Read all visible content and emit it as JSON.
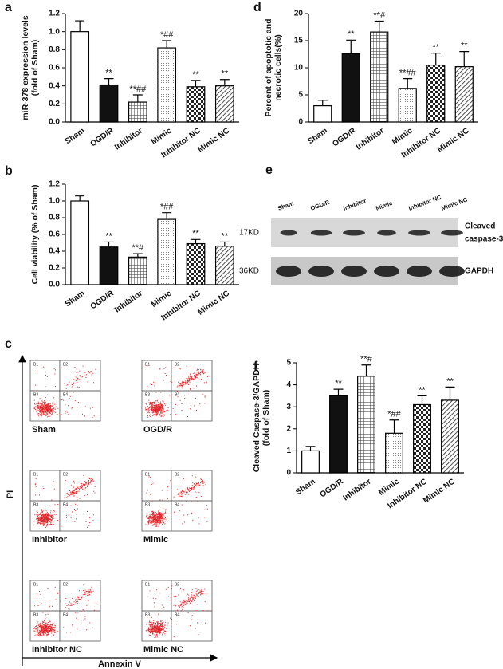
{
  "chart_data": [
    {
      "type": "bar",
      "panel_label": "a",
      "y_label": [
        "miR-378 expression levels",
        "(fold of Sham)"
      ],
      "categories": [
        "Sham",
        "OGD/R",
        "Inhibitor",
        "Mimic",
        "Inhibitor NC",
        "Mimic NC"
      ],
      "values": [
        1.0,
        0.41,
        0.22,
        0.82,
        0.39,
        0.4
      ],
      "errors": [
        0.12,
        0.07,
        0.08,
        0.08,
        0.07,
        0.07
      ],
      "annotations": [
        null,
        "**",
        "**##",
        "*##",
        "**",
        "**"
      ],
      "fills": [
        "white",
        "black",
        "grid",
        "dots",
        "checker",
        "hatch"
      ],
      "ylim": [
        0,
        1.2
      ],
      "yticks": [
        {
          "value": 0,
          "label": "0.0"
        },
        {
          "value": 0.2,
          "label": "0.2"
        },
        {
          "value": 0.4,
          "label": "0.4"
        },
        {
          "value": 0.6,
          "label": "0.6"
        },
        {
          "value": 0.8,
          "label": "0.8"
        },
        {
          "value": 1,
          "label": "1.0"
        },
        {
          "value": 1.2,
          "label": "1.2"
        }
      ]
    },
    {
      "type": "bar",
      "panel_label": "b",
      "y_label": [
        "Cell viability (% of Sham)"
      ],
      "categories": [
        "Sham",
        "OGD/R",
        "Inhibitor",
        "Mimic",
        "Inhibitor NC",
        "Mimic NC"
      ],
      "values": [
        1.0,
        0.45,
        0.33,
        0.78,
        0.49,
        0.46
      ],
      "errors": [
        0.06,
        0.06,
        0.04,
        0.08,
        0.05,
        0.05
      ],
      "annotations": [
        null,
        "**",
        "**#",
        "*##",
        "**",
        "**"
      ],
      "fills": [
        "white",
        "black",
        "grid",
        "dots",
        "checker",
        "hatch"
      ],
      "ylim": [
        0,
        1.2
      ],
      "yticks": [
        {
          "value": 0,
          "label": "0.0"
        },
        {
          "value": 0.2,
          "label": "0.2"
        },
        {
          "value": 0.4,
          "label": "0.4"
        },
        {
          "value": 0.6,
          "label": "0.6"
        },
        {
          "value": 0.8,
          "label": "0.8"
        },
        {
          "value": 1,
          "label": "1.0"
        },
        {
          "value": 1.2,
          "label": "1.2"
        }
      ]
    },
    {
      "type": "bar",
      "panel_label": "d",
      "y_label": [
        "Percent of apoptotic and",
        "necrotic cells(%)"
      ],
      "categories": [
        "Sham",
        "OGD/R",
        "Inhibitor",
        "Mimic",
        "Inhibitor NC",
        "Mimic NC"
      ],
      "values": [
        3,
        12.6,
        16.6,
        6.2,
        10.5,
        10.2
      ],
      "errors": [
        1,
        2.5,
        2,
        1.8,
        2.2,
        2.8
      ],
      "annotations": [
        null,
        "**",
        "**#",
        "**##",
        "**",
        "**"
      ],
      "fills": [
        "white",
        "black",
        "grid",
        "dots",
        "checker",
        "hatch"
      ],
      "ylim": [
        0,
        20
      ],
      "yticks": [
        0,
        5,
        10,
        15,
        20
      ]
    },
    {
      "type": "bar",
      "panel_label": "f",
      "y_label": [
        "Cleaved Caspase-3/GAPDH",
        "(fold of Sham)"
      ],
      "categories": [
        "Sham",
        "OGD/R",
        "Inhibitor",
        "Mimic",
        "Inhibitor NC",
        "Mimic NC"
      ],
      "values": [
        1.0,
        3.5,
        4.4,
        1.8,
        3.1,
        3.3
      ],
      "errors": [
        0.2,
        0.3,
        0.5,
        0.6,
        0.4,
        0.6
      ],
      "annotations": [
        null,
        "**",
        "**#",
        "*##",
        "**",
        "**"
      ],
      "fills": [
        "white",
        "black",
        "grid",
        "dots",
        "checker",
        "hatch"
      ],
      "ylim": [
        0,
        5
      ],
      "yticks": [
        0,
        1,
        2,
        3,
        4,
        5
      ]
    }
  ],
  "flow_panel": {
    "panel_label": "c",
    "x_label": "Annexin V",
    "y_label": "PI",
    "quadrants": [
      "B1",
      "B2",
      "B3",
      "B4"
    ],
    "plots": [
      "Sham",
      "OGD/R",
      "Inhibitor",
      "Mimic",
      "Inhibitor NC",
      "Mimic NC"
    ]
  },
  "blot_panel": {
    "panel_label": "e",
    "lanes": [
      "Sham",
      "OGD/R",
      "Inhibitor",
      "Mimic",
      "Inhibitor NC",
      "Mimic NC"
    ],
    "rows": [
      {
        "size": "17KD",
        "name": [
          "Cleaved",
          "caspase-3"
        ]
      },
      {
        "size": "36KD",
        "name": [
          "GAPDH"
        ]
      }
    ]
  }
}
